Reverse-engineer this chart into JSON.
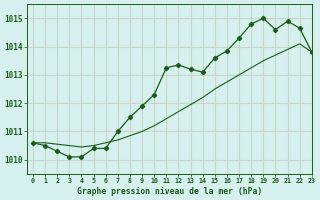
{
  "title": "Graphe pression niveau de la mer (hPa)",
  "xlim": [
    -0.5,
    23
  ],
  "ylim": [
    1009.5,
    1015.5
  ],
  "yticks": [
    1010,
    1011,
    1012,
    1013,
    1014,
    1015
  ],
  "xticks": [
    0,
    1,
    2,
    3,
    4,
    5,
    6,
    7,
    8,
    9,
    10,
    11,
    12,
    13,
    14,
    15,
    16,
    17,
    18,
    19,
    20,
    21,
    22,
    23
  ],
  "bg_color": "#d6f0ee",
  "grid_color": "#c8d8c8",
  "line_color": "#1a5c1a",
  "line1_x": [
    0,
    1,
    2,
    3,
    4,
    5,
    6,
    7,
    8,
    9,
    10,
    11,
    12,
    13,
    14,
    15,
    16,
    17,
    18,
    19,
    20,
    21,
    22,
    23
  ],
  "line1_y": [
    1010.6,
    1010.5,
    1010.3,
    1010.1,
    1010.1,
    1010.4,
    1010.4,
    1011.0,
    1011.5,
    1011.9,
    1012.3,
    1013.25,
    1013.35,
    1013.2,
    1013.1,
    1013.6,
    1013.85,
    1014.3,
    1014.8,
    1015.0,
    1014.6,
    1014.9,
    1014.65,
    1013.8
  ],
  "line2_x": [
    0,
    1,
    2,
    3,
    4,
    5,
    6,
    7,
    8,
    9,
    10,
    11,
    12,
    13,
    14,
    15,
    16,
    17,
    18,
    19,
    20,
    21,
    22,
    23
  ],
  "line2_y": [
    1010.6,
    1010.6,
    1010.55,
    1010.5,
    1010.45,
    1010.5,
    1010.6,
    1010.7,
    1010.85,
    1011.0,
    1011.2,
    1011.45,
    1011.7,
    1011.95,
    1012.2,
    1012.5,
    1012.75,
    1013.0,
    1013.25,
    1013.5,
    1013.7,
    1013.9,
    1014.1,
    1013.8
  ]
}
